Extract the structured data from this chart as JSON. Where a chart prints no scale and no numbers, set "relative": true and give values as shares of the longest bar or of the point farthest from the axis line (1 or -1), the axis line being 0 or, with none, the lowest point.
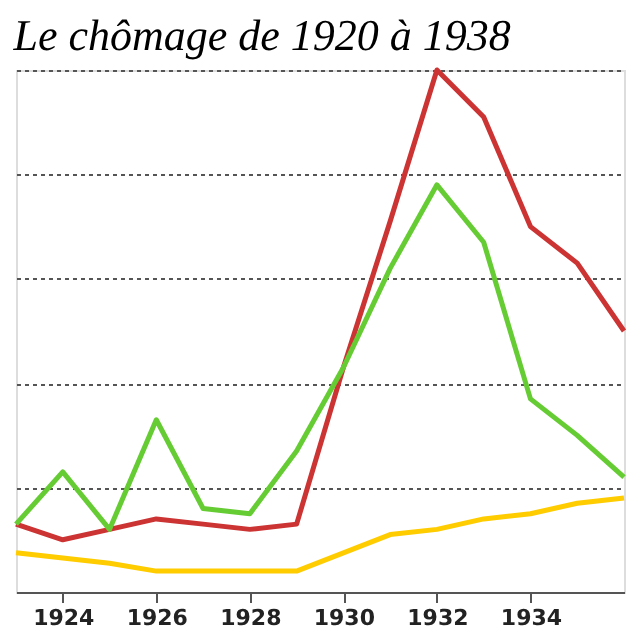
{
  "chart_data": {
    "type": "line",
    "title": "Le chômage de 1920 à 1938",
    "relative": true,
    "x": [
      1923,
      1924,
      1925,
      1926,
      1927,
      1928,
      1929,
      1930,
      1931,
      1932,
      1933,
      1934,
      1935,
      1936
    ],
    "series": [
      {
        "color": "#cc3333",
        "values": [
          0.13,
          0.1,
          0.12,
          0.14,
          0.13,
          0.12,
          0.13,
          0.43,
          0.71,
          1.0,
          0.91,
          0.7,
          0.63,
          0.5
        ]
      },
      {
        "color": "#66cc33",
        "values": [
          0.13,
          0.23,
          0.12,
          0.33,
          0.16,
          0.15,
          0.27,
          0.43,
          0.62,
          0.78,
          0.67,
          0.37,
          0.3,
          0.22
        ]
      },
      {
        "color": "#ffcc00",
        "values": [
          0.075,
          0.065,
          0.055,
          0.04,
          0.04,
          0.04,
          0.04,
          0.075,
          0.11,
          0.12,
          0.14,
          0.15,
          0.17,
          0.18
        ]
      }
    ],
    "xlim": [
      1923,
      1936
    ],
    "xticks": [
      1924,
      1926,
      1928,
      1930,
      1932,
      1934
    ],
    "grid": "y",
    "marker": "none",
    "line_style": "solid",
    "legend": false
  }
}
